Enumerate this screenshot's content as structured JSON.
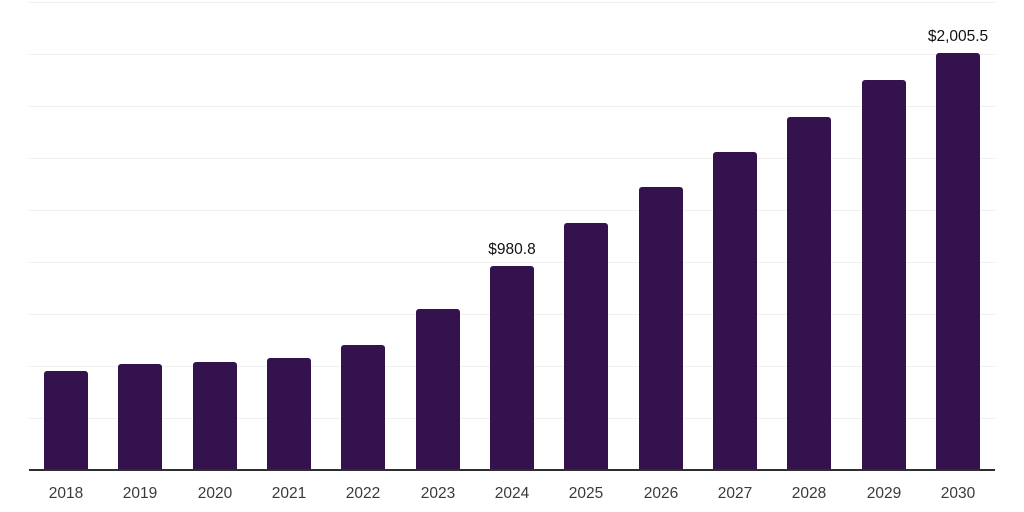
{
  "chart_data": {
    "type": "bar",
    "title": "",
    "xlabel": "",
    "ylabel": "",
    "categories": [
      "2018",
      "2019",
      "2020",
      "2021",
      "2022",
      "2023",
      "2024",
      "2025",
      "2026",
      "2027",
      "2028",
      "2029",
      "2030"
    ],
    "values": [
      476,
      512,
      517,
      538,
      601,
      774,
      980.8,
      1187,
      1361,
      1529,
      1697,
      1875,
      2005.5
    ],
    "data_labels": {
      "2024": "$980.8",
      "2030": "$2,005.5"
    },
    "ylim": [
      0,
      2250
    ],
    "gridline_step": 250,
    "grid": "horizontal-only",
    "legend": "none",
    "y_axis_labels_visible": false,
    "bar_color": "#34124d",
    "axis_line_color": "#2e2e2e",
    "gridline_color": "#f0f0f0",
    "tick_label_color": "#3a3a3a",
    "data_label_color": "#111111"
  }
}
